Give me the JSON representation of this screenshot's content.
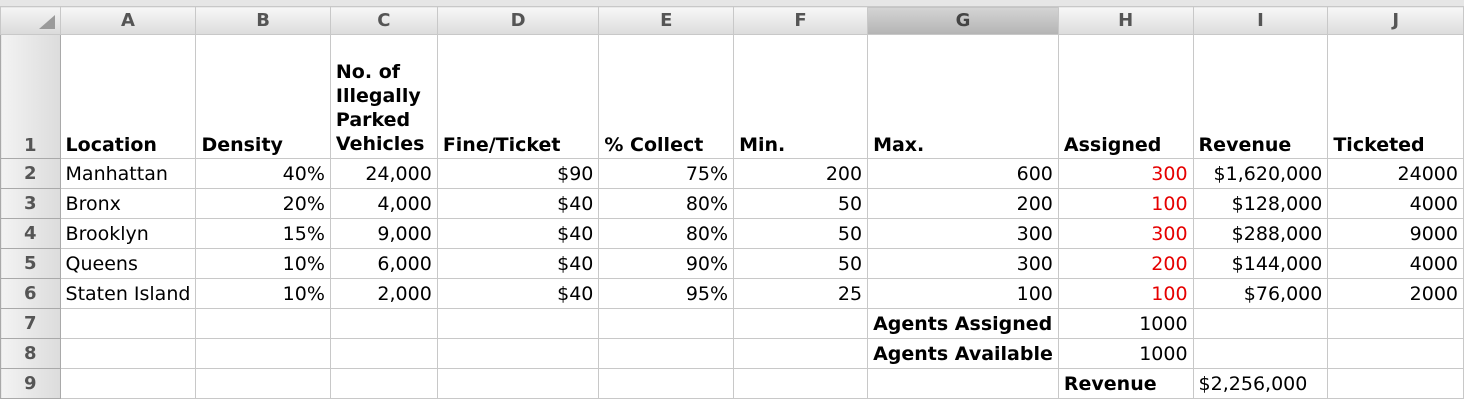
{
  "columns": [
    "A",
    "B",
    "C",
    "D",
    "E",
    "F",
    "G",
    "H",
    "I",
    "J"
  ],
  "rows": [
    "1",
    "2",
    "3",
    "4",
    "5",
    "6",
    "7",
    "8",
    "9"
  ],
  "headers": {
    "A": "Location",
    "B": "Density",
    "C_lines": [
      "No. of",
      "Illegally",
      "Parked",
      "Vehicles"
    ],
    "D": "Fine/Ticket",
    "E": "% Collect",
    "F": "Min.",
    "G": "Max.",
    "H": "Assigned",
    "I": "Revenue",
    "J": "Ticketed"
  },
  "data": [
    {
      "location": "Manhattan",
      "density": "40%",
      "vehicles": "24,000",
      "fine": "$90",
      "collect": "75%",
      "min": "200",
      "max": "600",
      "assigned": "300",
      "revenue": "$1,620,000",
      "ticketed": "24000"
    },
    {
      "location": "Bronx",
      "density": "20%",
      "vehicles": "4,000",
      "fine": "$40",
      "collect": "80%",
      "min": "50",
      "max": "200",
      "assigned": "100",
      "revenue": "$128,000",
      "ticketed": "4000"
    },
    {
      "location": "Brooklyn",
      "density": "15%",
      "vehicles": "9,000",
      "fine": "$40",
      "collect": "80%",
      "min": "50",
      "max": "300",
      "assigned": "300",
      "revenue": "$288,000",
      "ticketed": "9000"
    },
    {
      "location": "Queens",
      "density": "10%",
      "vehicles": "6,000",
      "fine": "$40",
      "collect": "90%",
      "min": "50",
      "max": "300",
      "assigned": "200",
      "revenue": "$144,000",
      "ticketed": "4000"
    },
    {
      "location": "Staten Island",
      "density": "10%",
      "vehicles": "2,000",
      "fine": "$40",
      "collect": "95%",
      "min": "25",
      "max": "100",
      "assigned": "100",
      "revenue": "$76,000",
      "ticketed": "2000"
    }
  ],
  "summary": {
    "agents_assigned_label": "Agents Assigned",
    "agents_assigned_value": "1000",
    "agents_available_label": "Agents Available",
    "agents_available_value": "1000",
    "revenue_label": "Revenue",
    "revenue_value": "$2,256,000"
  },
  "colors": {
    "changing_cell_text": "#e60000",
    "selected_column": "G"
  }
}
